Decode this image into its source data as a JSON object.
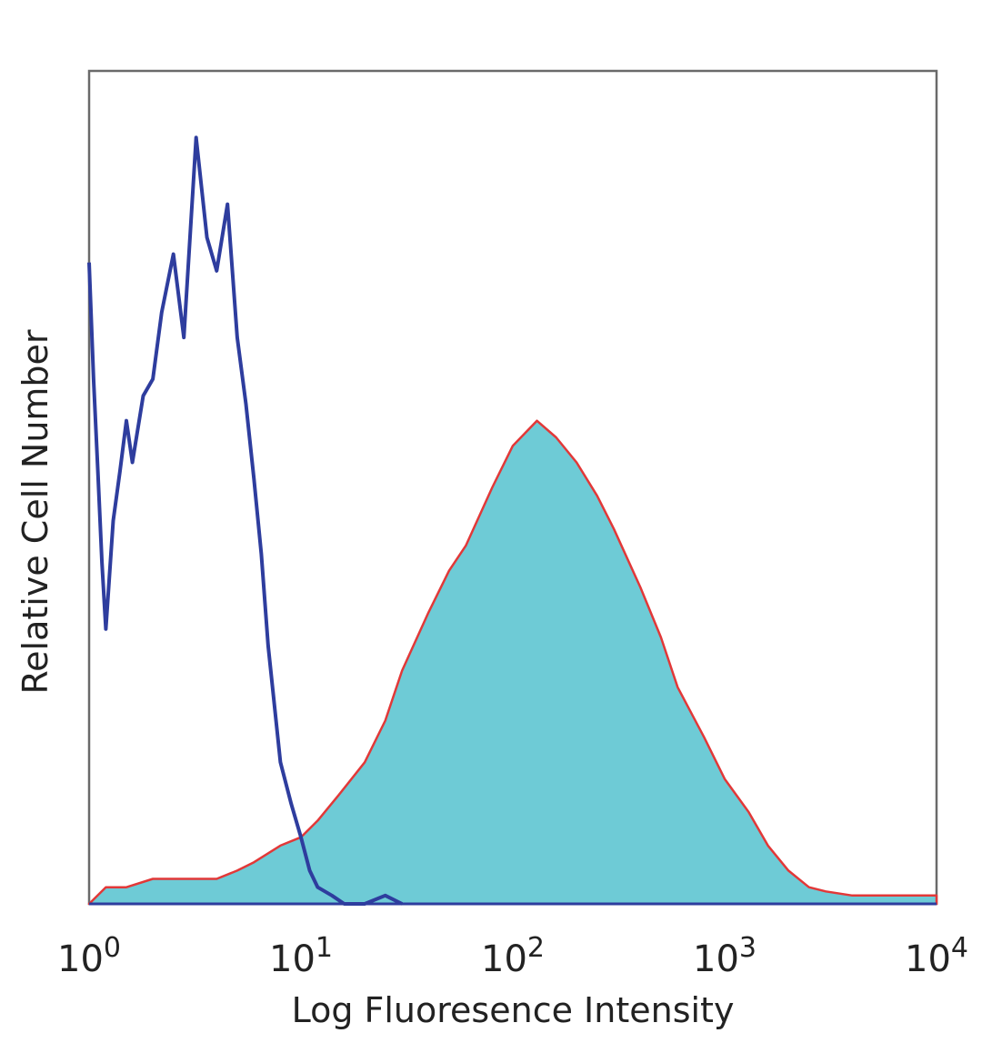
{
  "chart_data": {
    "type": "area",
    "xscale": "log",
    "xlim": [
      1,
      10000
    ],
    "ylim": [
      0,
      100
    ],
    "grid": false,
    "legend": "none",
    "xlabel": "Log Fluoresence Intensity",
    "ylabel": "Relative Cell Number",
    "x_ticks": [
      {
        "value": 1,
        "base": "10",
        "exp": "0"
      },
      {
        "value": 10,
        "base": "10",
        "exp": "1"
      },
      {
        "value": 100,
        "base": "10",
        "exp": "2"
      },
      {
        "value": 1000,
        "base": "10",
        "exp": "3"
      },
      {
        "value": 10000,
        "base": "10",
        "exp": "4"
      }
    ],
    "series": [
      {
        "style": "filled",
        "fill": "#6ecbd6",
        "stroke": "#e23838",
        "x": [
          1,
          1.2,
          1.5,
          2,
          3,
          4,
          5,
          6,
          8,
          10,
          12,
          15,
          20,
          25,
          30,
          40,
          50,
          60,
          80,
          100,
          130,
          160,
          200,
          250,
          300,
          400,
          500,
          600,
          800,
          1000,
          1300,
          1600,
          2000,
          2500,
          3000,
          4000,
          5000,
          7000,
          10000
        ],
        "y": [
          0,
          2,
          2,
          3,
          3,
          3,
          4,
          5,
          7,
          8,
          10,
          13,
          17,
          22,
          28,
          35,
          40,
          43,
          50,
          55,
          58,
          56,
          53,
          49,
          45,
          38,
          32,
          26,
          20,
          15,
          11,
          7,
          4,
          2,
          1.5,
          1,
          1,
          1,
          1
        ]
      },
      {
        "style": "line",
        "stroke": "#2e3d9e",
        "x": [
          1,
          1.05,
          1.1,
          1.15,
          1.2,
          1.3,
          1.4,
          1.5,
          1.6,
          1.8,
          2,
          2.2,
          2.5,
          2.8,
          3.2,
          3.6,
          4,
          4.5,
          5,
          5.5,
          6,
          6.5,
          7,
          8,
          9,
          10,
          11,
          12,
          14,
          16,
          20,
          25,
          30
        ],
        "y": [
          77,
          63,
          52,
          41,
          33,
          46,
          52,
          58,
          53,
          61,
          63,
          71,
          78,
          68,
          92,
          80,
          76,
          84,
          68,
          60,
          51,
          42,
          31,
          17,
          12,
          8,
          4,
          2,
          1,
          0,
          0,
          1,
          0
        ]
      }
    ]
  }
}
